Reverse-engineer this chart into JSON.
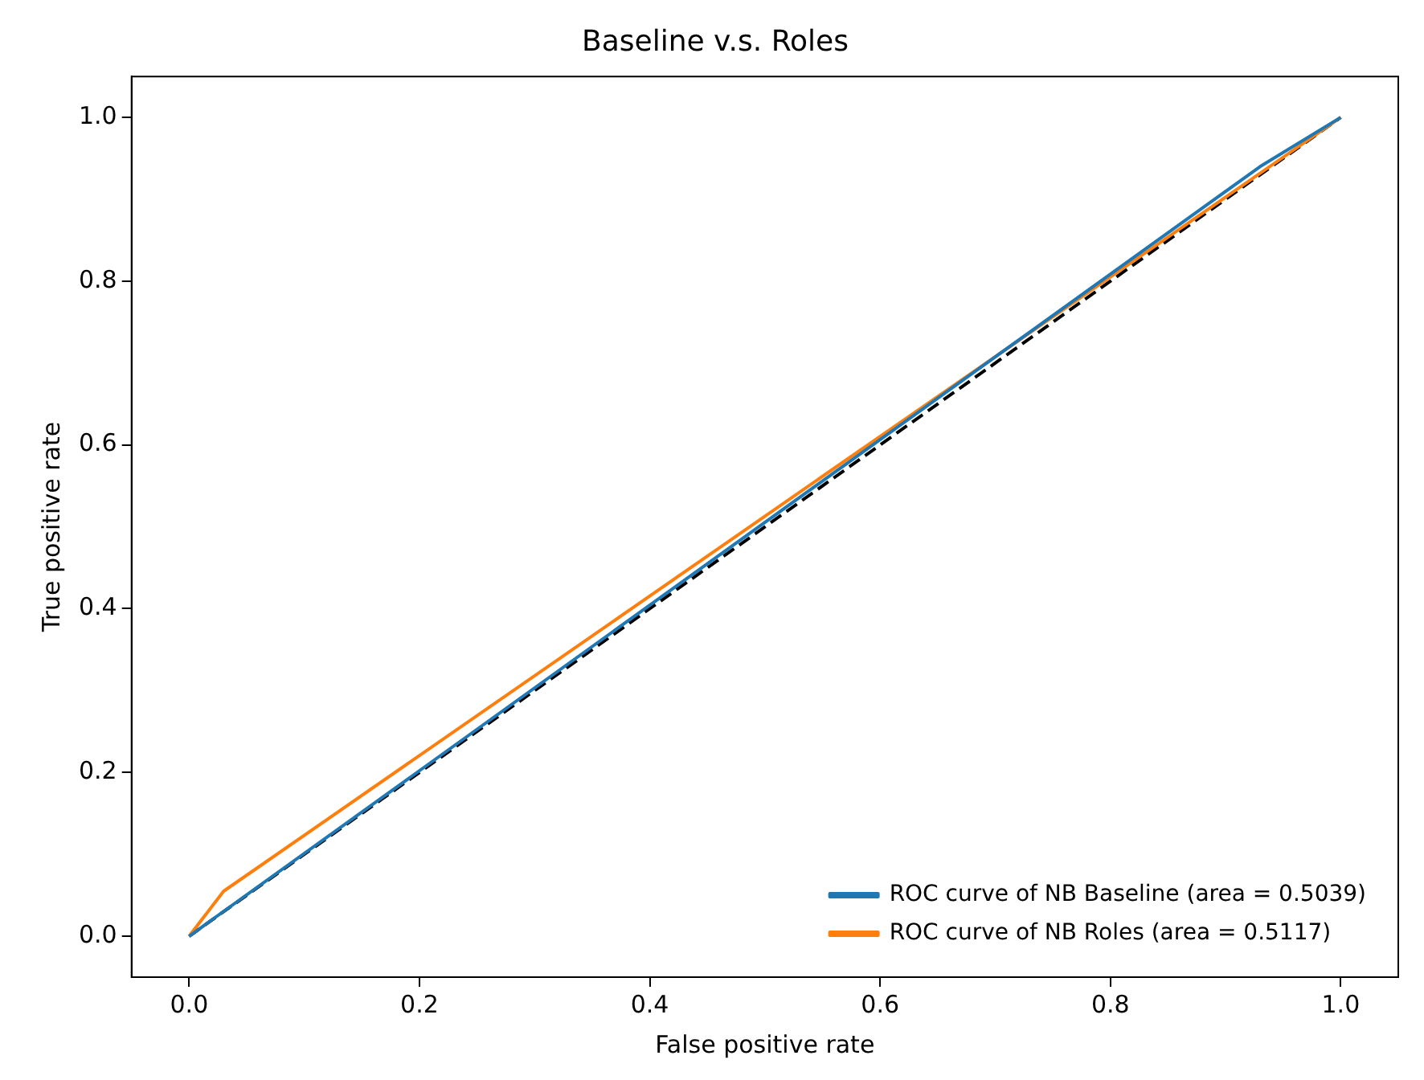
{
  "chart_data": {
    "type": "line",
    "title": "Baseline v.s. Roles",
    "xlabel": "False positive rate",
    "ylabel": "True positive rate",
    "xlim": [
      -0.05,
      1.05
    ],
    "ylim": [
      -0.05,
      1.05
    ],
    "xticks": [
      {
        "value": 0,
        "label": "0.0"
      },
      {
        "value": 0.2,
        "label": "0.2"
      },
      {
        "value": 0.4,
        "label": "0.4"
      },
      {
        "value": 0.6,
        "label": "0.6"
      },
      {
        "value": 0.8,
        "label": "0.8"
      },
      {
        "value": 1,
        "label": "1.0"
      }
    ],
    "yticks": [
      {
        "value": 0,
        "label": "0.0"
      },
      {
        "value": 0.2,
        "label": "0.2"
      },
      {
        "value": 0.4,
        "label": "0.4"
      },
      {
        "value": 0.6,
        "label": "0.6"
      },
      {
        "value": 0.8,
        "label": "0.8"
      },
      {
        "value": 1,
        "label": "1.0"
      }
    ],
    "grid": false,
    "legend": "bottom right",
    "marker": "none",
    "series": [
      {
        "name": "ROC curve of NB Baseline (area = 0.5039)",
        "color": "#1f77b4",
        "x": [
          0,
          0.93,
          1
        ],
        "values": [
          0,
          0.94,
          1
        ],
        "line_style": "solid"
      },
      {
        "name": "ROC curve of NB Roles (area = 0.5117)",
        "color": "#ff7f0e",
        "x": [
          0,
          0.03,
          1
        ],
        "values": [
          0,
          0.055,
          1
        ],
        "line_style": "solid"
      },
      {
        "color": "#000000",
        "x": [
          0,
          1
        ],
        "values": [
          0,
          1
        ],
        "line_style": "dashed"
      }
    ]
  }
}
